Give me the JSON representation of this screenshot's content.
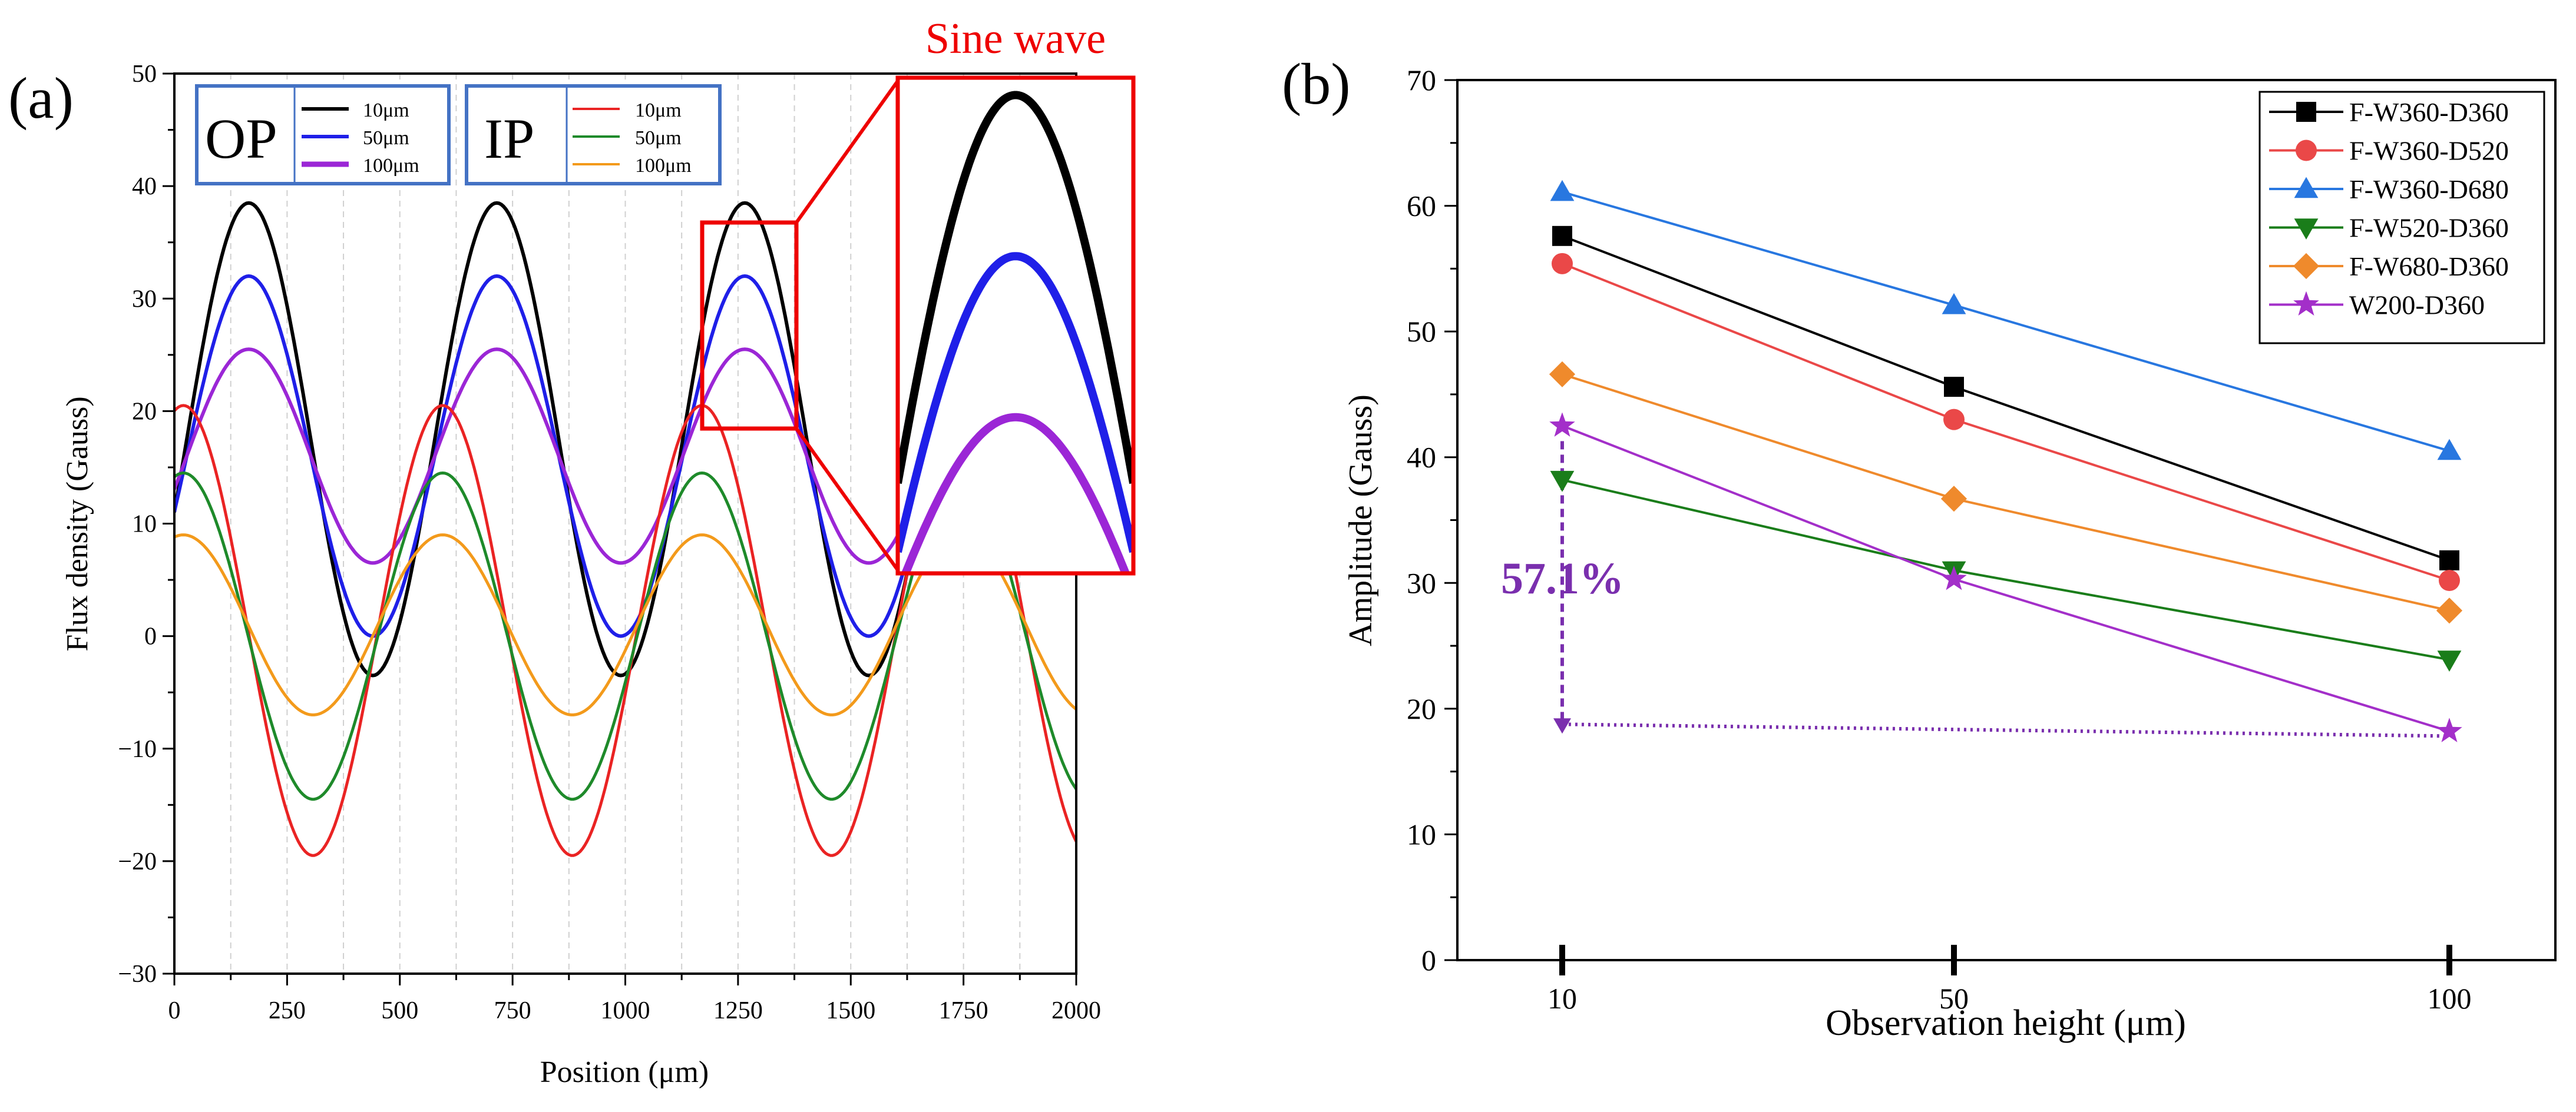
{
  "chart_data": [
    {
      "panel_label": "(a)",
      "type": "line",
      "xlabel": "Position (μm)",
      "ylabel": "Flux density (Gauss)",
      "xlim": [
        0,
        2000
      ],
      "ylim": [
        -30,
        50
      ],
      "xticks": [
        "0",
        "250",
        "500",
        "750",
        "1000",
        "1250",
        "1500",
        "1750",
        "2000"
      ],
      "yticks": [
        "−30",
        "−20",
        "−10",
        "0",
        "10",
        "20",
        "30",
        "40",
        "50"
      ],
      "legend_groups": [
        {
          "group": "OP",
          "entries": [
            "10μm",
            "50μm",
            "100μm"
          ]
        },
        {
          "group": "IP",
          "entries": [
            "10μm",
            "50μm",
            "100μm"
          ]
        }
      ],
      "inset_title": "Sine wave",
      "series": [
        {
          "name": "OP 10μm",
          "color": "#000000",
          "mean": 17.5,
          "amplitude": 21.0,
          "period": 550,
          "peak_x": 165,
          "phase_drift": 1.0
        },
        {
          "name": "OP 50μm",
          "color": "#1f1fe8",
          "mean": 16.0,
          "amplitude": 16.0,
          "period": 550,
          "peak_x": 165,
          "phase_drift": 1.0
        },
        {
          "name": "OP 100μm",
          "color": "#9b26d6",
          "mean": 16.0,
          "amplitude": 9.5,
          "period": 550,
          "peak_x": 165,
          "phase_drift": 1.0
        },
        {
          "name": "IP 10μm",
          "color": "#ea2323",
          "mean": 0.5,
          "amplitude": 20.0,
          "period": 575,
          "peak_x": 20,
          "phase_drift": 1.0
        },
        {
          "name": "IP 50μm",
          "color": "#1e8a2a",
          "mean": 0.0,
          "amplitude": 14.5,
          "period": 575,
          "peak_x": 20,
          "phase_drift": 1.0
        },
        {
          "name": "IP 100μm",
          "color": "#f39a1b",
          "mean": 1.0,
          "amplitude": 8.0,
          "period": 575,
          "peak_x": 20,
          "phase_drift": 1.0
        }
      ]
    },
    {
      "panel_label": "(b)",
      "type": "line",
      "xlabel": "Observation height (μm)",
      "ylabel": "Amplitude (Gauss)",
      "categories": [
        "10",
        "50",
        "100"
      ],
      "ylim": [
        0,
        70
      ],
      "yticks": [
        "0",
        "10",
        "20",
        "30",
        "40",
        "50",
        "60",
        "70"
      ],
      "annotation": "57.1%",
      "annotation_color": "#7a2fae",
      "series": [
        {
          "name": "F-W360-D360",
          "color": "#000000",
          "marker": "square",
          "values": [
            57.6,
            45.6,
            31.8
          ]
        },
        {
          "name": "F-W360-D520",
          "color": "#ea4848",
          "marker": "circle",
          "values": [
            55.4,
            43.0,
            30.2
          ]
        },
        {
          "name": "F-W360-D680",
          "color": "#2877e0",
          "marker": "triangle-up",
          "values": [
            61.1,
            52.1,
            40.5
          ]
        },
        {
          "name": "F-W520-D360",
          "color": "#1a7d1a",
          "marker": "triangle-down",
          "values": [
            38.2,
            31.0,
            23.9
          ]
        },
        {
          "name": "F-W680-D360",
          "color": "#ef8a2c",
          "marker": "diamond",
          "values": [
            46.6,
            36.7,
            27.8
          ]
        },
        {
          "name": "W200-D360",
          "color": "#a32fc9",
          "marker": "star",
          "values": [
            42.5,
            30.3,
            18.2
          ]
        }
      ]
    }
  ]
}
